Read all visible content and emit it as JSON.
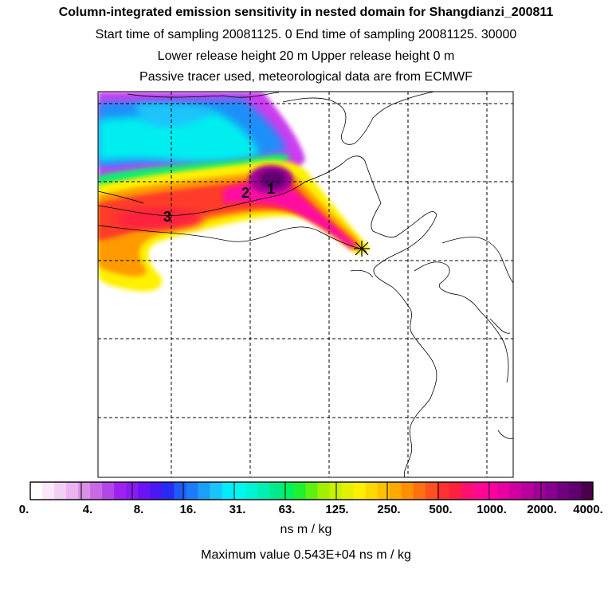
{
  "header": {
    "title": "Column-integrated emission sensitivity in nested domain for Shangdianzi_200811",
    "line2": "Start time of sampling 20081125.     0     End time of sampling 20081125. 30000",
    "line3": "Lower release height   20 m          Upper release height    0 m",
    "line4": "Passive tracer used, meteorological data are from ECMWF"
  },
  "map": {
    "markers": [
      {
        "id": "marker-1",
        "label": "1"
      },
      {
        "id": "marker-2",
        "label": "2"
      },
      {
        "id": "marker-3",
        "label": "3"
      }
    ],
    "release_site_symbol": "star-cross"
  },
  "colorbar": {
    "tick_labels": [
      "0.",
      "4.",
      "8.",
      "16.",
      "31.",
      "63.",
      "125.",
      "250.",
      "500.",
      "1000.",
      "2000.",
      "4000."
    ],
    "colors": [
      "#ffffff",
      "#fbe7fb",
      "#f3cff5",
      "#ebb3f0",
      "#d98fe8",
      "#c86ae6",
      "#b446e8",
      "#a020f0",
      "#8a1af2",
      "#6a14f4",
      "#4a18f4",
      "#2a2af6",
      "#1e5af6",
      "#1a7cf8",
      "#1aa0f8",
      "#1ac4fa",
      "#00ecff",
      "#00f6f0",
      "#00f4d4",
      "#00f0b4",
      "#00ec8c",
      "#00f064",
      "#20f030",
      "#60f010",
      "#a0f000",
      "#c8f000",
      "#e4f000",
      "#fff000",
      "#ffd800",
      "#ffc000",
      "#ffa800",
      "#ff9000",
      "#ff7010",
      "#ff5020",
      "#ff3030",
      "#ff2040",
      "#ff1070",
      "#ff0890",
      "#ff00a0",
      "#e800a0",
      "#d000a0",
      "#b8009c",
      "#a00098",
      "#880090",
      "#700080",
      "#600070",
      "#4a004a"
    ],
    "units": "ns m / kg"
  },
  "footer": {
    "max_value": "Maximum value  0.543E+04 ns m / kg"
  }
}
